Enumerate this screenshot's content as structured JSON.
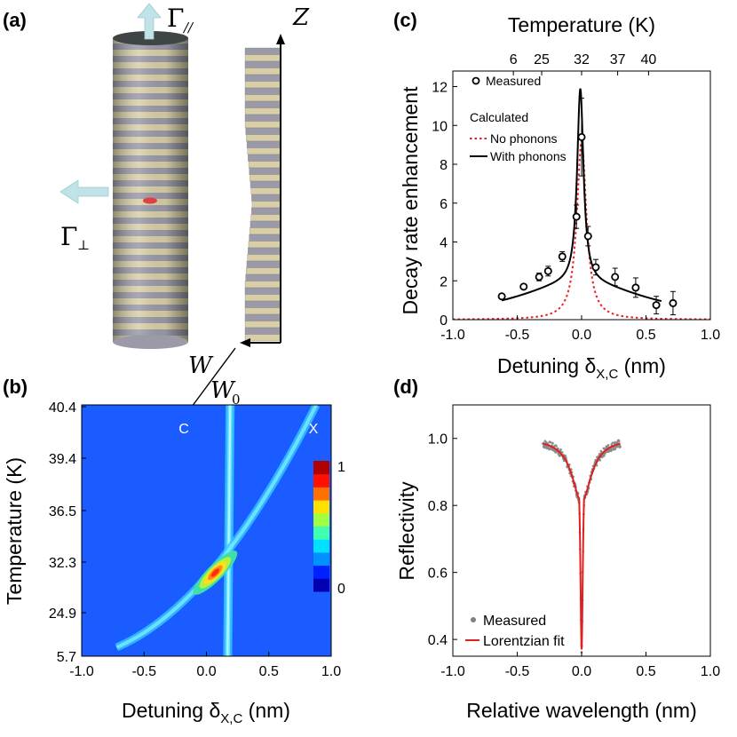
{
  "panels": {
    "a": {
      "label": "(a)",
      "gamma_parallel_symbol": "Γ",
      "gamma_parallel_sub": "//",
      "gamma_perp_symbol": "Γ",
      "gamma_perp_sub": "⊥",
      "z_label": "Z",
      "w_label": "W",
      "w0_label": "W",
      "w0_sub": "0",
      "colors": {
        "stripe_light": "#d8cfa8",
        "stripe_dark": "#9a9aa8",
        "arrow": "#bfe3e6",
        "emitter": "#e04040"
      }
    },
    "b": {
      "label": "(b)",
      "x_label_main": "Detuning δ",
      "x_label_sub": "X,C",
      "x_label_unit": " (nm)",
      "y_label": "Temperature (K)",
      "x_ticks": [
        "-1.0",
        "-0.5",
        "0.0",
        "0.5",
        "1.0"
      ],
      "y_ticks": [
        "5.7",
        "24.9",
        "32.3",
        "36.5",
        "39.4",
        "40.4"
      ],
      "mode_labels": [
        "C",
        "X"
      ],
      "colorbar_ticks": [
        "1",
        "0"
      ]
    },
    "c": {
      "label": "(c)",
      "top_axis_label": "Temperature (K)",
      "top_ticks": [
        "6",
        "25",
        "32",
        "37",
        "40"
      ],
      "legend": {
        "measured": "Measured",
        "calculated_title": "Calculated",
        "no_phonons": "No phonons",
        "with_phonons": "With phonons"
      }
    },
    "d": {
      "label": "(d)"
    }
  },
  "chart_data": [
    {
      "panel": "b",
      "type": "heatmap",
      "xlabel": "Detuning δX,C (nm)",
      "ylabel": "Temperature (K)",
      "xlim": [
        -1.0,
        1.0
      ],
      "y_tick_labels": [
        "5.7",
        "24.9",
        "32.3",
        "36.5",
        "39.4",
        "40.4"
      ],
      "colorbar": {
        "min": 0,
        "max": 1,
        "colormap": "jet"
      },
      "annotations": [
        "C",
        "X"
      ]
    },
    {
      "panel": "c",
      "type": "scatter",
      "xlabel": "Detuning δX,C (nm)",
      "ylabel": "Decay rate enhancement",
      "top_xlabel": "Temperature (K)",
      "xlim": [
        -1.0,
        1.0
      ],
      "ylim": [
        0,
        12.8
      ],
      "x_ticks": [
        -1.0,
        -0.5,
        0.0,
        0.5,
        1.0
      ],
      "y_ticks": [
        0,
        2,
        4,
        6,
        8,
        10,
        12
      ],
      "top_ticks": [
        {
          "label": "6",
          "x": -0.53
        },
        {
          "label": "25",
          "x": -0.31
        },
        {
          "label": "32",
          "x": 0.0
        },
        {
          "label": "37",
          "x": 0.28
        },
        {
          "label": "40",
          "x": 0.52
        }
      ],
      "series": [
        {
          "name": "Measured",
          "style": "open-circle",
          "color": "#000000",
          "points": [
            {
              "x": -0.62,
              "y": 1.2,
              "err": 0
            },
            {
              "x": -0.45,
              "y": 1.7,
              "err": 0
            },
            {
              "x": -0.33,
              "y": 2.2,
              "err": 0.2
            },
            {
              "x": -0.26,
              "y": 2.5,
              "err": 0.25
            },
            {
              "x": -0.15,
              "y": 3.25,
              "err": 0.25
            },
            {
              "x": -0.04,
              "y": 5.3,
              "err": 0.6
            },
            {
              "x": 0.0,
              "y": 9.4,
              "err": 2.0
            },
            {
              "x": 0.05,
              "y": 4.3,
              "err": 0.5
            },
            {
              "x": 0.11,
              "y": 2.7,
              "err": 0.4
            },
            {
              "x": 0.26,
              "y": 2.2,
              "err": 0.45
            },
            {
              "x": 0.42,
              "y": 1.65,
              "err": 0.5
            },
            {
              "x": 0.58,
              "y": 0.75,
              "err": 0.45
            },
            {
              "x": 0.71,
              "y": 0.85,
              "err": 0.6
            }
          ]
        },
        {
          "name": "No phonons",
          "style": "dotted",
          "color": "#e82020",
          "curve": {
            "kind": "lorentzian",
            "amp": 9.2,
            "center": 0.0,
            "hwhm": 0.045,
            "offset": 0.0
          },
          "range": [
            -1.0,
            1.0
          ]
        },
        {
          "name": "With phonons",
          "style": "solid",
          "color": "#000000",
          "curve": {
            "kind": "lorentzian_plus_broad",
            "amp": 10.0,
            "center": -0.01,
            "hwhm": 0.03,
            "broad_amp": 1.9,
            "broad_hwhm": 0.62
          },
          "range": [
            -0.62,
            0.62
          ]
        }
      ]
    },
    {
      "panel": "d",
      "type": "line",
      "xlabel": "Relative wavelength (nm)",
      "ylabel": "Reflectivity",
      "xlim": [
        -1.0,
        1.0
      ],
      "ylim": [
        0.35,
        1.1
      ],
      "x_ticks": [
        -1.0,
        -0.5,
        0.0,
        0.5,
        1.0
      ],
      "y_ticks": [
        0.4,
        0.6,
        0.8,
        1.0
      ],
      "series": [
        {
          "name": "Measured",
          "style": "gray-points",
          "color": "#808080",
          "range": [
            -0.3,
            0.3
          ]
        },
        {
          "name": "Lorentzian fit",
          "style": "solid",
          "color": "#e02020",
          "curve": {
            "kind": "dip",
            "baseline": 1.0,
            "min": 0.37,
            "center": 0.0,
            "hwhm": 0.012
          },
          "range": [
            -0.3,
            0.3
          ]
        }
      ]
    }
  ]
}
